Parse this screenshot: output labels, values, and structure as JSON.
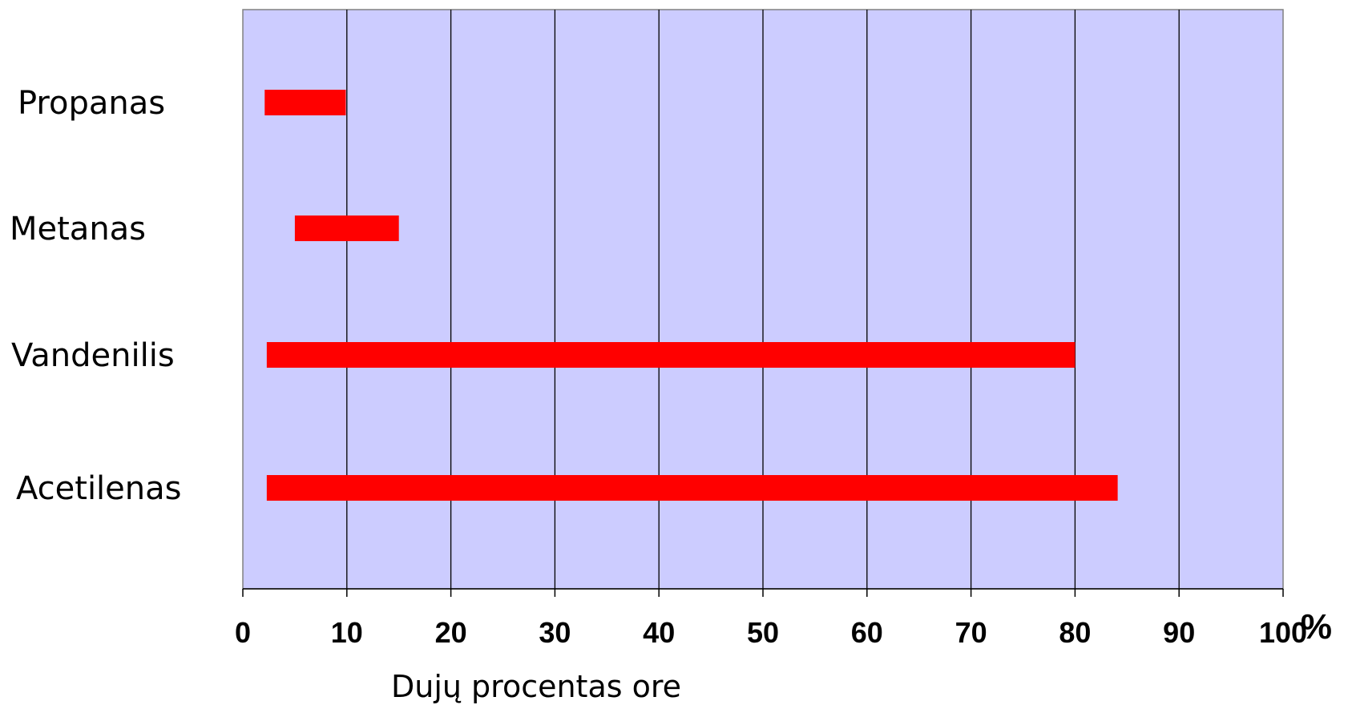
{
  "chart_data": {
    "type": "bar",
    "orientation": "horizontal",
    "categories": [
      "Propanas",
      "Metanas",
      "Vandenilis",
      "Acetilenas"
    ],
    "ranges": [
      {
        "category": "Propanas",
        "start": 2.1,
        "end": 9.9
      },
      {
        "category": "Metanas",
        "start": 5.0,
        "end": 15.0
      },
      {
        "category": "Vandenilis",
        "start": 2.3,
        "end": 80.0
      },
      {
        "category": "Acetilenas",
        "start": 2.3,
        "end": 84.1
      }
    ],
    "xlim": [
      0,
      100
    ],
    "xticks": [
      "0",
      "10",
      "20",
      "30",
      "40",
      "50",
      "60",
      "70",
      "80",
      "90",
      "100"
    ],
    "x_unit": "%",
    "xlabel": "Dujų procentas ore",
    "grid": "vertical",
    "colors": {
      "plot_background": "#ccccff",
      "bar": "#ff0000",
      "grid": "#000000"
    }
  }
}
